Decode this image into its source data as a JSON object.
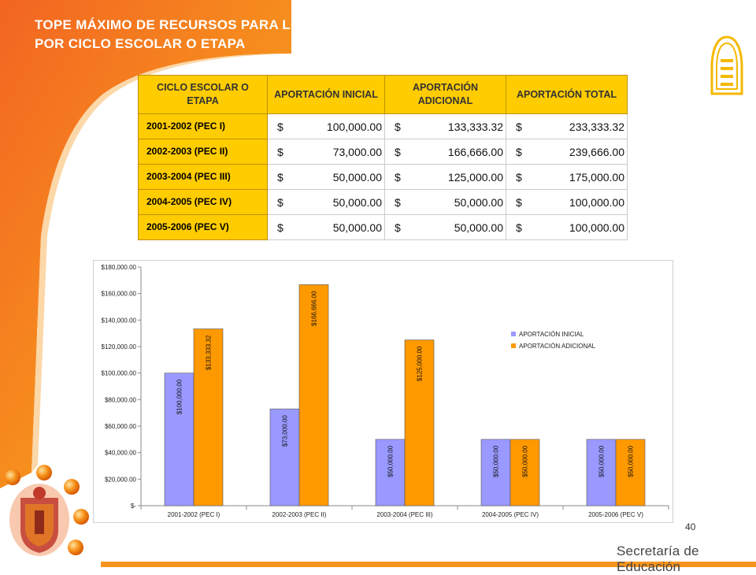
{
  "title": {
    "line1": "TOPE MÁXIMO DE RECURSOS PARA LOS PLANTELES ESCOLARES",
    "line2": "POR CICLO ESCOLAR O ETAPA"
  },
  "table": {
    "headers": [
      "CICLO ESCOLAR O ETAPA",
      "APORTACIÓN INICIAL",
      "APORTACIÓN ADICIONAL",
      "APORTACIÓN TOTAL"
    ],
    "currency_symbol": "$",
    "rows": [
      {
        "cycle": "2001-2002 (PEC I)",
        "inicial": "100,000.00",
        "adicional": "133,333.32",
        "total": "233,333.32"
      },
      {
        "cycle": "2002-2003 (PEC II)",
        "inicial": "73,000.00",
        "adicional": "166,666.00",
        "total": "239,666.00"
      },
      {
        "cycle": "2003-2004 (PEC III)",
        "inicial": "50,000.00",
        "adicional": "125,000.00",
        "total": "175,000.00"
      },
      {
        "cycle": "2004-2005 (PEC IV)",
        "inicial": "50,000.00",
        "adicional": "50,000.00",
        "total": "100,000.00"
      },
      {
        "cycle": "2005-2006 (PEC V)",
        "inicial": "50,000.00",
        "adicional": "50,000.00",
        "total": "100,000.00"
      }
    ]
  },
  "chart_data": {
    "type": "bar",
    "categories": [
      "2001-2002 (PEC I)",
      "2002-2003 (PEC II)",
      "2003-2004 (PEC III)",
      "2004-2005 (PEC IV)",
      "2005-2006 (PEC V)"
    ],
    "series": [
      {
        "name": "APORTACIÓN INICIAL",
        "values": [
          100000,
          73000,
          50000,
          50000,
          50000
        ],
        "labels": [
          "$100,000.00",
          "$73,000.00",
          "$50,000.00",
          "$50,000.00",
          "$50,000.00"
        ],
        "color": "#9999ff"
      },
      {
        "name": "APORTACIÓN ADICIONAL",
        "values": [
          133333.32,
          166666,
          125000,
          50000,
          50000
        ],
        "labels": [
          "$133,333.32",
          "$166,666.00",
          "$125,000.00",
          "$50,000.00",
          "$50,000.00"
        ],
        "color": "#ff9900"
      }
    ],
    "ylim": [
      0,
      180000
    ],
    "ytick_values": [
      0,
      20000,
      40000,
      60000,
      80000,
      100000,
      120000,
      140000,
      160000,
      180000
    ],
    "ytick_labels": [
      "$-",
      "$20,000.00",
      "$40,000.00",
      "$60,000.00",
      "$80,000.00",
      "$100,000.00",
      "$120,000.00",
      "$140,000.00",
      "$160,000.00",
      "$180,000.00"
    ],
    "legend_position": "right",
    "grid": false
  },
  "page_number": "40",
  "footer": "Secretaría de Educación",
  "colors": {
    "orange": "#f07d16",
    "yellow": "#ffcc00",
    "initial": "#9999ff",
    "additional": "#ff9900"
  }
}
